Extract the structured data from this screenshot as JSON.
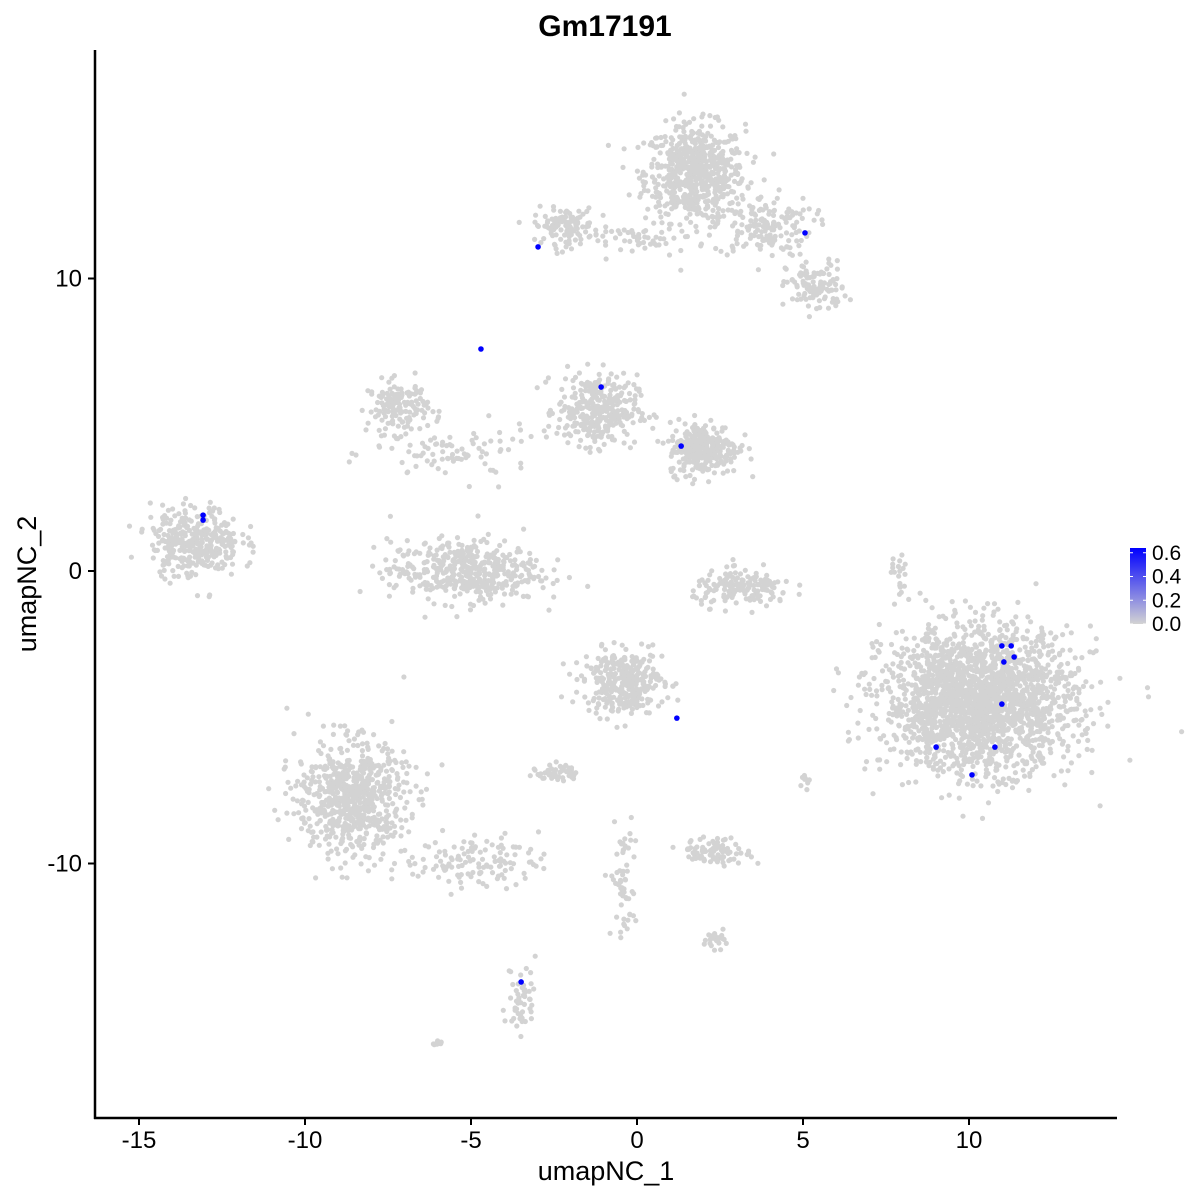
{
  "chart_data": {
    "type": "scatter",
    "title": "Gm17191",
    "xlabel": "umapNC_1",
    "ylabel": "umapNC_2",
    "xlim": [
      -16.3,
      14.5
    ],
    "ylim": [
      -18.7,
      17.8
    ],
    "xticks": [
      -15,
      -10,
      -5,
      0,
      5,
      10
    ],
    "yticks": [
      -10,
      0,
      10
    ],
    "grid": false,
    "legend_position": "right",
    "colorbar": {
      "ticks": [
        "0.0",
        "0.2",
        "0.4",
        "0.6"
      ],
      "min": 0,
      "max": 0.64,
      "low_color": "#D3D3D3",
      "high_color": "#0000FF"
    },
    "background_clusters_unexpressed": [
      {
        "cx": 1.75,
        "cy": 13.6,
        "sx": 1.0,
        "sy": 1.1,
        "n": 650
      },
      {
        "cx": 3.8,
        "cy": 11.8,
        "sx": 1.0,
        "sy": 0.7,
        "n": 160
      },
      {
        "cx": 5.4,
        "cy": 9.7,
        "sx": 0.6,
        "sy": 0.6,
        "n": 110
      },
      {
        "cx": -2.2,
        "cy": 11.8,
        "sx": 0.6,
        "sy": 0.4,
        "n": 110
      },
      {
        "cx": 0.3,
        "cy": 11.3,
        "sx": 1.2,
        "sy": 0.3,
        "n": 50
      },
      {
        "cx": -7.2,
        "cy": 5.6,
        "sx": 0.6,
        "sy": 0.6,
        "n": 150
      },
      {
        "cx": -5.5,
        "cy": 4.0,
        "sx": 1.6,
        "sy": 0.6,
        "n": 80
      },
      {
        "cx": -1.2,
        "cy": 5.5,
        "sx": 0.8,
        "sy": 0.8,
        "n": 350
      },
      {
        "cx": 2.0,
        "cy": 4.2,
        "sx": 0.7,
        "sy": 0.6,
        "n": 300
      },
      {
        "cx": -5.2,
        "cy": 0.0,
        "sx": 1.5,
        "sy": 0.7,
        "n": 450
      },
      {
        "cx": -13.3,
        "cy": 1.0,
        "sx": 0.9,
        "sy": 0.8,
        "n": 350
      },
      {
        "cx": 3.2,
        "cy": -0.6,
        "sx": 1.0,
        "sy": 0.4,
        "n": 170
      },
      {
        "cx": 10.3,
        "cy": -4.4,
        "sx": 1.9,
        "sy": 1.6,
        "n": 2200
      },
      {
        "cx": -0.4,
        "cy": -3.8,
        "sx": 0.8,
        "sy": 0.7,
        "n": 350
      },
      {
        "cx": -8.6,
        "cy": -7.8,
        "sx": 1.1,
        "sy": 1.3,
        "n": 700
      },
      {
        "cx": -4.8,
        "cy": -9.9,
        "sx": 1.2,
        "sy": 0.6,
        "n": 120
      },
      {
        "cx": -3.5,
        "cy": -14.6,
        "sx": 0.3,
        "sy": 0.8,
        "n": 50
      },
      {
        "cx": -2.4,
        "cy": -6.9,
        "sx": 0.4,
        "sy": 0.2,
        "n": 50
      },
      {
        "cx": 2.4,
        "cy": -9.6,
        "sx": 0.7,
        "sy": 0.3,
        "n": 90
      },
      {
        "cx": -0.4,
        "cy": -10.6,
        "sx": 0.25,
        "sy": 1.4,
        "n": 60
      },
      {
        "cx": 2.4,
        "cy": -12.6,
        "sx": 0.3,
        "sy": 0.2,
        "n": 25
      },
      {
        "cx": -6.0,
        "cy": -16.1,
        "sx": 0.1,
        "sy": 0.1,
        "n": 8
      },
      {
        "cx": 7.9,
        "cy": -0.3,
        "sx": 0.15,
        "sy": 0.6,
        "n": 20
      },
      {
        "cx": 5.1,
        "cy": -7.2,
        "sx": 0.1,
        "sy": 0.2,
        "n": 10
      }
    ],
    "expressed_points": [
      {
        "x": -2.98,
        "y": 11.08,
        "value": 0.64
      },
      {
        "x": 5.06,
        "y": 11.56,
        "value": 0.64
      },
      {
        "x": -4.7,
        "y": 7.59,
        "value": 0.64
      },
      {
        "x": -1.08,
        "y": 6.29,
        "value": 0.64
      },
      {
        "x": 1.33,
        "y": 4.27,
        "value": 0.64
      },
      {
        "x": -13.07,
        "y": 1.91,
        "value": 0.64
      },
      {
        "x": -13.07,
        "y": 1.74,
        "value": 0.64
      },
      {
        "x": 10.99,
        "y": -2.56,
        "value": 0.64
      },
      {
        "x": 11.27,
        "y": -2.56,
        "value": 0.64
      },
      {
        "x": 11.05,
        "y": -3.11,
        "value": 0.64
      },
      {
        "x": 11.36,
        "y": -2.94,
        "value": 0.64
      },
      {
        "x": 10.99,
        "y": -4.55,
        "value": 0.64
      },
      {
        "x": 1.2,
        "y": -5.03,
        "value": 0.64
      },
      {
        "x": 9.01,
        "y": -6.02,
        "value": 0.64
      },
      {
        "x": 10.78,
        "y": -6.02,
        "value": 0.64
      },
      {
        "x": 10.09,
        "y": -6.97,
        "value": 0.64
      },
      {
        "x": -3.49,
        "y": -14.05,
        "value": 0.64
      }
    ]
  }
}
